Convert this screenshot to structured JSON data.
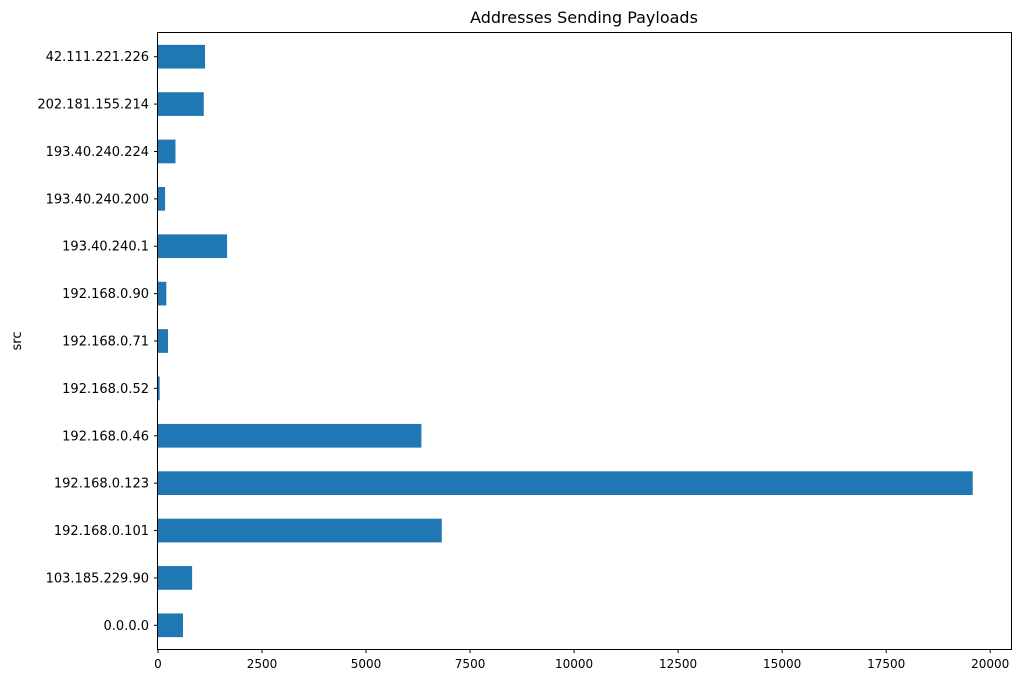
{
  "chart_data": {
    "type": "bar",
    "orientation": "horizontal",
    "title": "Addresses Sending Payloads",
    "xlabel": "",
    "ylabel": "src",
    "categories": [
      "0.0.0.0",
      "103.185.229.90",
      "192.168.0.101",
      "192.168.0.123",
      "192.168.0.46",
      "192.168.0.52",
      "192.168.0.71",
      "192.168.0.90",
      "193.40.240.1",
      "193.40.240.200",
      "193.40.240.224",
      "202.181.155.214",
      "42.111.221.226"
    ],
    "values": [
      600,
      820,
      6820,
      19580,
      6330,
      40,
      240,
      200,
      1660,
      170,
      420,
      1100,
      1130
    ],
    "xlim": [
      0,
      20500
    ],
    "xticks": [
      0,
      2500,
      5000,
      7500,
      10000,
      12500,
      15000,
      17500,
      20000
    ],
    "grid": false,
    "legend": "none",
    "bar_color": "#1f77b4"
  }
}
